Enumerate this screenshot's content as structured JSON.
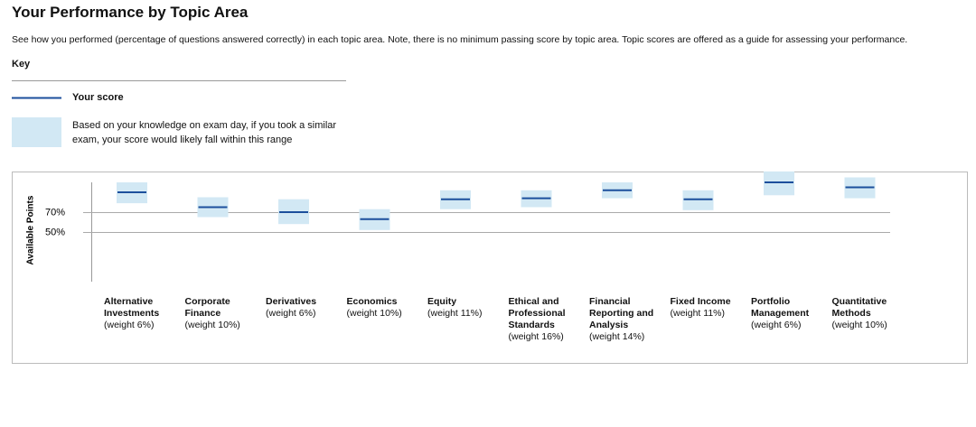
{
  "header": {
    "title": "Your Performance by Topic Area",
    "description": "See how you performed (percentage of questions answered correctly) in each topic area. Note, there is no minimum passing score by topic area. Topic scores are offered as a guide for assessing your performance.",
    "key_title": "Key"
  },
  "chart_data": {
    "type": "range-score",
    "y_label": "Available Points",
    "categories": [
      "Alternative Investments",
      "Corporate Finance",
      "Derivatives",
      "Economics",
      "Equity",
      "Ethical and Professional Standards",
      "Financial Reporting and Analysis",
      "Fixed Income",
      "Portfolio Management",
      "Quantitative Methods"
    ],
    "weights": [
      "(weight 6%)",
      "(weight 10%)",
      "(weight 6%)",
      "(weight 10%)",
      "(weight 11%)",
      "(weight 16%)",
      "(weight 14%)",
      "(weight 11%)",
      "(weight 6%)",
      "(weight 10%)"
    ],
    "series": [
      {
        "name": "Your score",
        "color": "#1c4f9c",
        "values": [
          90,
          75,
          70,
          63,
          83,
          84,
          92,
          83,
          100,
          95
        ]
      }
    ],
    "range": {
      "name": "Based on your knowledge on exam day, if you took a similar exam, your score would likely fall within this range",
      "color": "#d2e8f4",
      "low": [
        79,
        65,
        58,
        52,
        73,
        75,
        84,
        72,
        87,
        84
      ],
      "high": [
        100,
        85,
        83,
        73,
        92,
        92,
        100,
        92,
        111,
        105
      ]
    },
    "ylim": [
      0,
      100
    ],
    "yticks": [
      {
        "value": 70,
        "label": "70%"
      },
      {
        "value": 50,
        "label": "50%"
      }
    ],
    "grid": true
  }
}
